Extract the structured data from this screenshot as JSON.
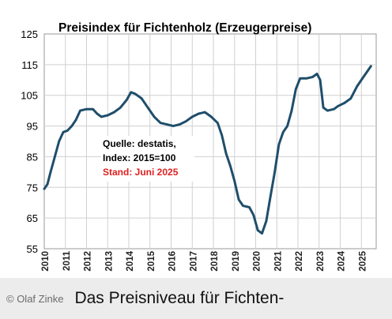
{
  "chart_data": {
    "type": "line",
    "title": "Preisindex für Fichtenholz  (Erzeugerpreise)",
    "ylim": [
      55,
      125
    ],
    "yticks": [
      55,
      65,
      75,
      85,
      95,
      105,
      115,
      125
    ],
    "xlim": [
      2010,
      2025.7
    ],
    "xticks": [
      {
        "x": 2010,
        "label": "2010"
      },
      {
        "x": 2011,
        "label": "2011"
      },
      {
        "x": 2012,
        "label": "2012"
      },
      {
        "x": 2013,
        "label": "2013"
      },
      {
        "x": 2014,
        "label": "2014"
      },
      {
        "x": 2015,
        "label": "2015"
      },
      {
        "x": 2016,
        "label": "2016"
      },
      {
        "x": 2017,
        "label": "2017"
      },
      {
        "x": 2018,
        "label": "2018"
      },
      {
        "x": 2019,
        "label": "2019"
      },
      {
        "x": 2020,
        "label": "2020"
      },
      {
        "x": 2021,
        "label": "2021"
      },
      {
        "x": 2022,
        "label": "2022"
      },
      {
        "x": 2023,
        "label": "2023"
      },
      {
        "x": 2024,
        "label": "2024"
      },
      {
        "x": 2025,
        "label": "2025"
      }
    ],
    "grid": true,
    "line_color": "#1f4e6b",
    "annotation": {
      "source": "Quelle: destatis,",
      "index": "Index: 2015=100",
      "stand": "Stand: Juni 2025",
      "stand_color": "#e02020"
    },
    "series": [
      {
        "values": [
          {
            "x": 2010.0,
            "y": 74.5
          },
          {
            "x": 2010.15,
            "y": 76
          },
          {
            "x": 2010.3,
            "y": 80
          },
          {
            "x": 2010.5,
            "y": 85
          },
          {
            "x": 2010.7,
            "y": 90
          },
          {
            "x": 2010.9,
            "y": 93
          },
          {
            "x": 2011.1,
            "y": 93.5
          },
          {
            "x": 2011.3,
            "y": 95
          },
          {
            "x": 2011.5,
            "y": 97
          },
          {
            "x": 2011.7,
            "y": 100
          },
          {
            "x": 2012.0,
            "y": 100.5
          },
          {
            "x": 2012.3,
            "y": 100.5
          },
          {
            "x": 2012.5,
            "y": 99
          },
          {
            "x": 2012.7,
            "y": 98
          },
          {
            "x": 2013.0,
            "y": 98.5
          },
          {
            "x": 2013.3,
            "y": 99.5
          },
          {
            "x": 2013.6,
            "y": 101
          },
          {
            "x": 2013.9,
            "y": 103.5
          },
          {
            "x": 2014.1,
            "y": 106
          },
          {
            "x": 2014.3,
            "y": 105.5
          },
          {
            "x": 2014.6,
            "y": 104
          },
          {
            "x": 2014.9,
            "y": 101
          },
          {
            "x": 2015.2,
            "y": 98
          },
          {
            "x": 2015.5,
            "y": 96
          },
          {
            "x": 2015.8,
            "y": 95.5
          },
          {
            "x": 2016.1,
            "y": 95
          },
          {
            "x": 2016.4,
            "y": 95.5
          },
          {
            "x": 2016.7,
            "y": 96.5
          },
          {
            "x": 2017.0,
            "y": 98
          },
          {
            "x": 2017.3,
            "y": 99
          },
          {
            "x": 2017.6,
            "y": 99.5
          },
          {
            "x": 2017.9,
            "y": 98
          },
          {
            "x": 2018.2,
            "y": 96
          },
          {
            "x": 2018.4,
            "y": 92
          },
          {
            "x": 2018.6,
            "y": 86
          },
          {
            "x": 2018.8,
            "y": 82
          },
          {
            "x": 2019.0,
            "y": 77
          },
          {
            "x": 2019.2,
            "y": 71
          },
          {
            "x": 2019.4,
            "y": 69
          },
          {
            "x": 2019.7,
            "y": 68.5
          },
          {
            "x": 2019.9,
            "y": 66
          },
          {
            "x": 2020.1,
            "y": 61
          },
          {
            "x": 2020.3,
            "y": 60
          },
          {
            "x": 2020.5,
            "y": 64
          },
          {
            "x": 2020.7,
            "y": 72
          },
          {
            "x": 2020.9,
            "y": 80
          },
          {
            "x": 2021.1,
            "y": 89
          },
          {
            "x": 2021.3,
            "y": 93
          },
          {
            "x": 2021.5,
            "y": 95
          },
          {
            "x": 2021.7,
            "y": 100
          },
          {
            "x": 2021.9,
            "y": 107
          },
          {
            "x": 2022.1,
            "y": 110.5
          },
          {
            "x": 2022.4,
            "y": 110.5
          },
          {
            "x": 2022.7,
            "y": 111
          },
          {
            "x": 2022.9,
            "y": 112
          },
          {
            "x": 2023.05,
            "y": 110
          },
          {
            "x": 2023.2,
            "y": 101
          },
          {
            "x": 2023.4,
            "y": 100
          },
          {
            "x": 2023.7,
            "y": 100.5
          },
          {
            "x": 2023.9,
            "y": 101.5
          },
          {
            "x": 2024.2,
            "y": 102.5
          },
          {
            "x": 2024.5,
            "y": 104
          },
          {
            "x": 2024.8,
            "y": 108
          },
          {
            "x": 2025.1,
            "y": 111
          },
          {
            "x": 2025.3,
            "y": 113
          },
          {
            "x": 2025.45,
            "y": 114.5
          }
        ]
      }
    ]
  },
  "caption": {
    "credit": "© Olaf Zinke",
    "headline": "Das Preisniveau für Fichten-"
  }
}
